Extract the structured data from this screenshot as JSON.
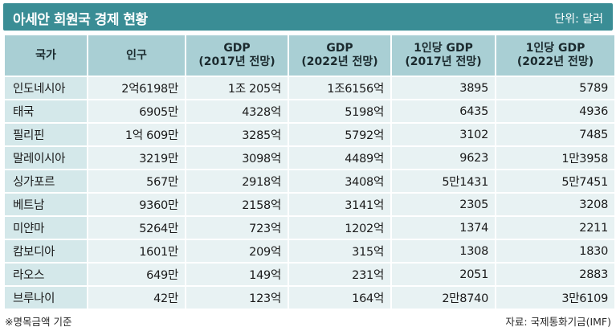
{
  "header": {
    "title": "아세안 회원국 경제 현황",
    "unit": "단위: 달러"
  },
  "table": {
    "columns": [
      {
        "line1": "국가",
        "line2": ""
      },
      {
        "line1": "인구",
        "line2": ""
      },
      {
        "line1": "GDP",
        "line2": "(2017년 전망)"
      },
      {
        "line1": "GDP",
        "line2": "(2022년 전망)"
      },
      {
        "line1": "1인당 GDP",
        "line2": "(2017년 전망)"
      },
      {
        "line1": "1인당 GDP",
        "line2": "(2022년 전망)"
      }
    ],
    "rows": [
      [
        "인도네시아",
        "2억6198만",
        "1조 205억",
        "1조6156억",
        "3895",
        "5789"
      ],
      [
        "태국",
        "6905만",
        "4328억",
        "5198억",
        "6435",
        "4936"
      ],
      [
        "필리핀",
        "1억 609만",
        "3285억",
        "5792억",
        "3102",
        "7485"
      ],
      [
        "말레이시아",
        "3219만",
        "3098억",
        "4489억",
        "9623",
        "1만3958"
      ],
      [
        "싱가포르",
        "567만",
        "2918억",
        "3408억",
        "5만1431",
        "5만7451"
      ],
      [
        "베트남",
        "9360만",
        "2158억",
        "3141억",
        "2305",
        "3208"
      ],
      [
        "미얀마",
        "5264만",
        "723억",
        "1202억",
        "1374",
        "2211"
      ],
      [
        "캄보디아",
        "1601만",
        "209억",
        "315억",
        "1308",
        "1830"
      ],
      [
        "라오스",
        "649만",
        "149억",
        "231억",
        "2051",
        "2883"
      ],
      [
        "브루나이",
        "42만",
        "123억",
        "164억",
        "2만8740",
        "3만6109"
      ]
    ]
  },
  "footer": {
    "note": "※명목금액 기준",
    "source": "자료: 국제통화기금(IMF)"
  }
}
